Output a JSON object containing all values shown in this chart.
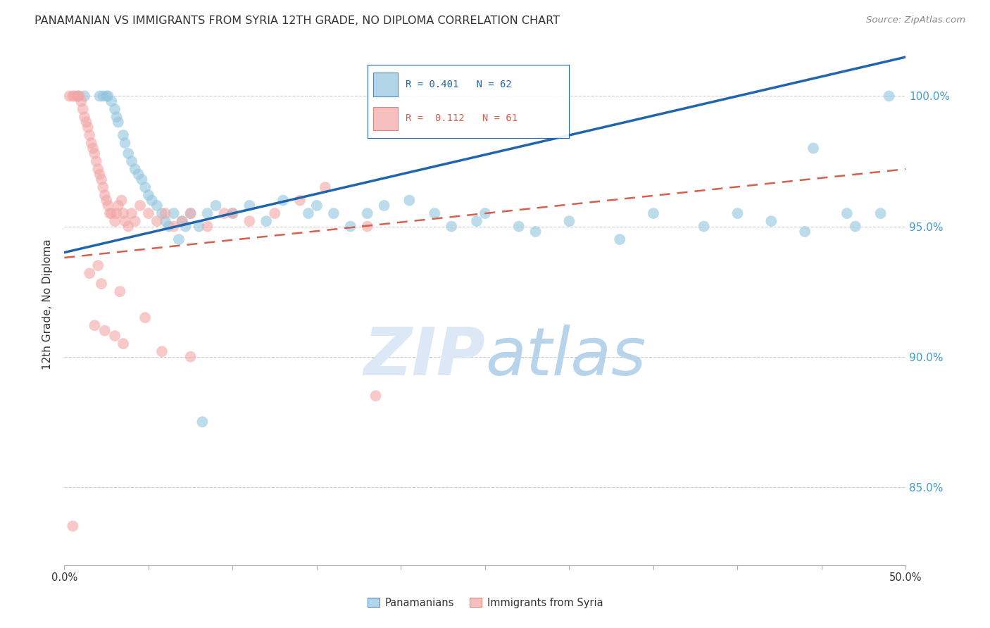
{
  "title": "PANAMANIAN VS IMMIGRANTS FROM SYRIA 12TH GRADE, NO DIPLOMA CORRELATION CHART",
  "source": "Source: ZipAtlas.com",
  "ylabel": "12th Grade, No Diploma",
  "watermark_zip": "ZIP",
  "watermark_atlas": "atlas",
  "legend_line1": "R = 0.401   N = 62",
  "legend_line2": "R =  0.112   N = 61",
  "legend_label_blue": "Panamanians",
  "legend_label_pink": "Immigrants from Syria",
  "xlim": [
    0.0,
    50.0
  ],
  "ylim": [
    82.0,
    102.0
  ],
  "yticks": [
    85.0,
    90.0,
    95.0,
    100.0
  ],
  "ytick_labels": [
    "85.0%",
    "90.0%",
    "95.0%",
    "100.0%"
  ],
  "blue_color": "#92c5de",
  "pink_color": "#f4a6a6",
  "blue_line_color": "#2166ac",
  "pink_line_color": "#d6604d",
  "right_axis_color": "#4499cc",
  "grid_color": "#cccccc",
  "blue_scatter_x": [
    0.8,
    1.2,
    2.1,
    2.3,
    2.5,
    2.6,
    2.8,
    3.0,
    3.1,
    3.2,
    3.5,
    3.6,
    3.8,
    4.0,
    4.2,
    4.4,
    4.6,
    4.8,
    5.0,
    5.2,
    5.5,
    5.8,
    6.0,
    6.2,
    6.5,
    7.0,
    7.5,
    8.0,
    8.5,
    9.0,
    10.0,
    11.0,
    12.0,
    13.0,
    14.5,
    15.0,
    16.0,
    17.0,
    18.0,
    19.0,
    20.5,
    22.0,
    23.0,
    24.5,
    25.0,
    27.0,
    28.0,
    30.0,
    33.0,
    35.0,
    38.0,
    40.0,
    42.0,
    44.0,
    46.5,
    47.0,
    48.5,
    49.0,
    6.8,
    7.2,
    8.2,
    44.5
  ],
  "blue_scatter_y": [
    100.0,
    100.0,
    100.0,
    100.0,
    100.0,
    100.0,
    99.8,
    99.5,
    99.2,
    99.0,
    98.5,
    98.2,
    97.8,
    97.5,
    97.2,
    97.0,
    96.8,
    96.5,
    96.2,
    96.0,
    95.8,
    95.5,
    95.2,
    95.0,
    95.5,
    95.2,
    95.5,
    95.0,
    95.5,
    95.8,
    95.5,
    95.8,
    95.2,
    96.0,
    95.5,
    95.8,
    95.5,
    95.0,
    95.5,
    95.8,
    96.0,
    95.5,
    95.0,
    95.2,
    95.5,
    95.0,
    94.8,
    95.2,
    94.5,
    95.5,
    95.0,
    95.5,
    95.2,
    94.8,
    95.5,
    95.0,
    95.5,
    100.0,
    94.5,
    95.0,
    87.5,
    98.0
  ],
  "pink_scatter_x": [
    0.3,
    0.5,
    0.6,
    0.8,
    0.9,
    1.0,
    1.1,
    1.2,
    1.3,
    1.4,
    1.5,
    1.6,
    1.7,
    1.8,
    1.9,
    2.0,
    2.1,
    2.2,
    2.3,
    2.4,
    2.5,
    2.6,
    2.7,
    2.8,
    3.0,
    3.1,
    3.2,
    3.4,
    3.5,
    3.6,
    3.8,
    4.0,
    4.2,
    4.5,
    5.0,
    5.5,
    6.0,
    6.5,
    7.0,
    7.5,
    8.5,
    9.5,
    10.0,
    11.0,
    12.5,
    14.0,
    15.5,
    18.0,
    2.0,
    1.5,
    2.2,
    3.3,
    4.8,
    1.8,
    2.4,
    3.0,
    3.5,
    5.8,
    7.5,
    18.5,
    0.5
  ],
  "pink_scatter_y": [
    100.0,
    100.0,
    100.0,
    100.0,
    100.0,
    99.8,
    99.5,
    99.2,
    99.0,
    98.8,
    98.5,
    98.2,
    98.0,
    97.8,
    97.5,
    97.2,
    97.0,
    96.8,
    96.5,
    96.2,
    96.0,
    95.8,
    95.5,
    95.5,
    95.2,
    95.5,
    95.8,
    96.0,
    95.5,
    95.2,
    95.0,
    95.5,
    95.2,
    95.8,
    95.5,
    95.2,
    95.5,
    95.0,
    95.2,
    95.5,
    95.0,
    95.5,
    95.5,
    95.2,
    95.5,
    96.0,
    96.5,
    95.0,
    93.5,
    93.2,
    92.8,
    92.5,
    91.5,
    91.2,
    91.0,
    90.8,
    90.5,
    90.2,
    90.0,
    88.5,
    83.5
  ],
  "blue_line_x0": 0.0,
  "blue_line_x1": 50.0,
  "blue_line_y0": 94.0,
  "blue_line_y1": 101.5,
  "pink_line_x0": 0.0,
  "pink_line_x1": 50.0,
  "pink_line_y0": 93.8,
  "pink_line_y1": 97.2,
  "background_color": "#ffffff",
  "title_fontsize": 11.5,
  "source_fontsize": 9.5
}
